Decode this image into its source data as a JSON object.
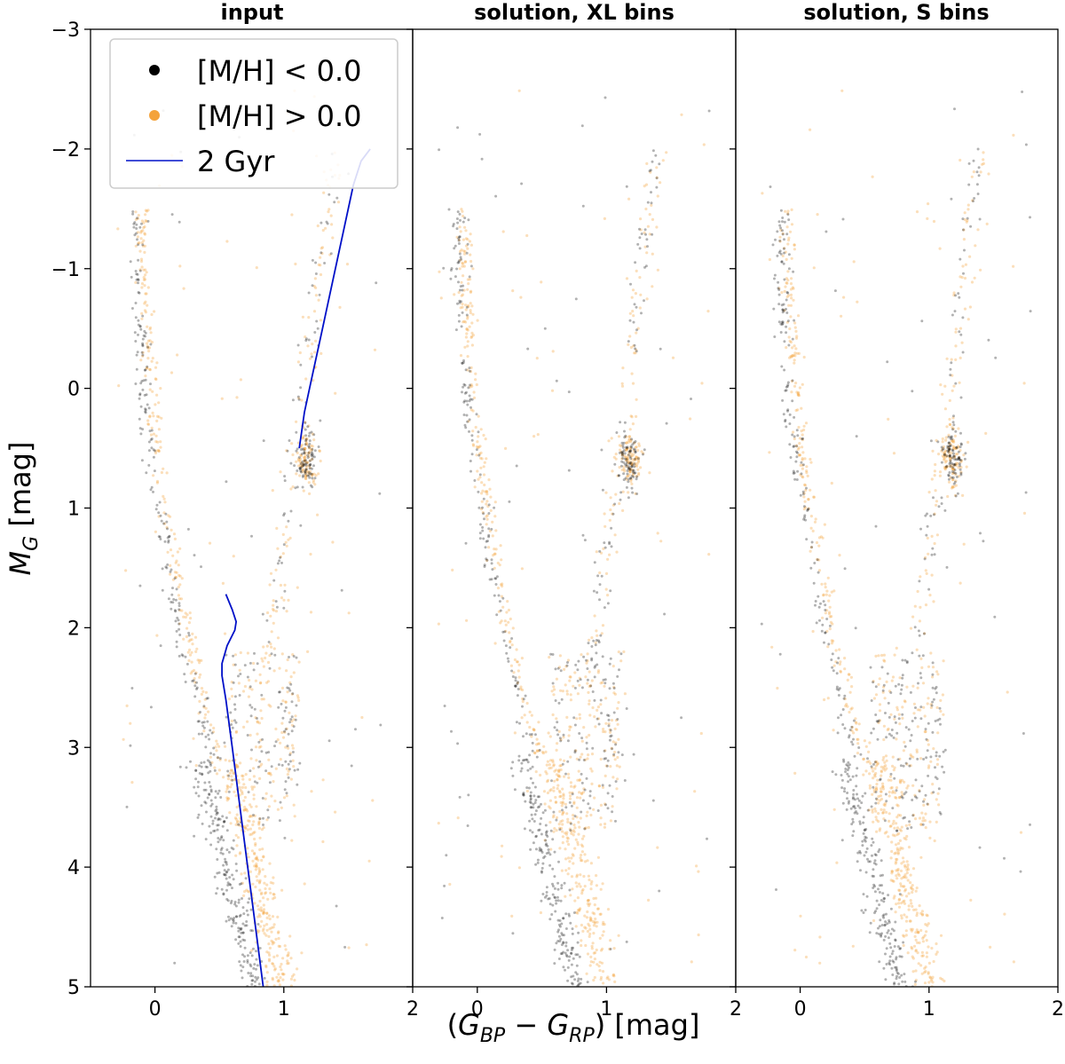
{
  "colors": {
    "metal_poor": "#000000",
    "metal_rich": "#f4a33b",
    "isochrone": "#0010c8"
  },
  "chart_data": {
    "type": "scatter",
    "xlabel": "(G_BP − G_RP) [mag]",
    "xlabel_parts": {
      "open": "(",
      "g1": "G",
      "s1": "BP",
      "minus": " − ",
      "g2": "G",
      "s2": "RP",
      "close": ")",
      "unit": " [mag]"
    },
    "ylabel": "M_G [mag]",
    "ylabel_parts": {
      "m": "M",
      "sub": "G",
      "unit": " [mag]"
    },
    "xlim": [
      -0.5,
      2
    ],
    "ylim": [
      5,
      -3
    ],
    "xticks": [
      "0",
      "1",
      "2"
    ],
    "yticks": [
      "−3",
      "−2",
      "−1",
      "0",
      "1",
      "2",
      "3",
      "4",
      "5"
    ],
    "panels": [
      {
        "title": "input",
        "has_legend": true,
        "has_isochrone": true
      },
      {
        "title": "solution, XL bins",
        "has_legend": false,
        "has_isochrone": false
      },
      {
        "title": "solution, S bins",
        "has_legend": false,
        "has_isochrone": false
      }
    ],
    "legend": {
      "entries": [
        {
          "label": "[M/H] < 0.0",
          "kind": "marker",
          "color": "#000000"
        },
        {
          "label": "[M/H] > 0.0",
          "kind": "marker",
          "color": "#f4a33b"
        },
        {
          "label": "2 Gyr",
          "kind": "line",
          "color": "#0010c8"
        }
      ],
      "placement": "top-left"
    },
    "series": [
      {
        "name": "[M/H] < 0.0",
        "color": "#000000"
      },
      {
        "name": "[M/H] > 0.0",
        "color": "#f4a33b"
      }
    ],
    "isochrone": {
      "name": "2 Gyr",
      "lower_branch": [
        [
          0.84,
          5.0
        ],
        [
          0.78,
          4.5
        ],
        [
          0.72,
          4.0
        ],
        [
          0.66,
          3.5
        ],
        [
          0.6,
          3.0
        ],
        [
          0.55,
          2.6
        ],
        [
          0.52,
          2.4
        ],
        [
          0.52,
          2.3
        ],
        [
          0.56,
          2.15
        ],
        [
          0.62,
          2.02
        ],
        [
          0.63,
          1.95
        ],
        [
          0.6,
          1.85
        ],
        [
          0.55,
          1.72
        ]
      ],
      "upper_branch": [
        [
          1.12,
          0.5
        ],
        [
          1.16,
          0.2
        ],
        [
          1.22,
          -0.1
        ],
        [
          1.3,
          -0.5
        ],
        [
          1.38,
          -0.9
        ],
        [
          1.46,
          -1.3
        ],
        [
          1.54,
          -1.7
        ],
        [
          1.6,
          -1.9
        ],
        [
          1.67,
          -2.0
        ]
      ]
    }
  }
}
